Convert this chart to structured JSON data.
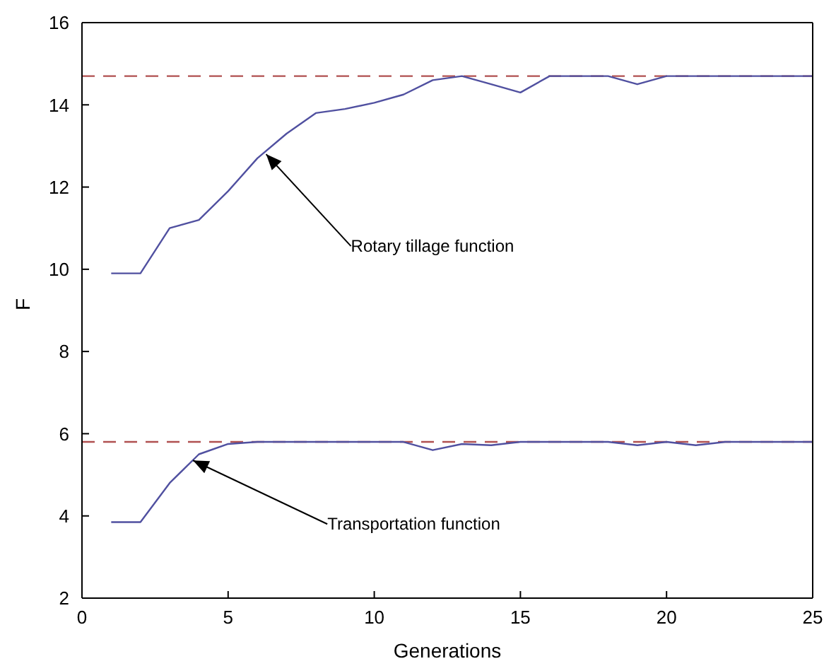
{
  "chart_data": {
    "type": "line",
    "xlabel": "Generations",
    "ylabel": "F",
    "x": [
      1,
      2,
      3,
      4,
      5,
      6,
      7,
      8,
      9,
      10,
      11,
      12,
      13,
      14,
      15,
      16,
      17,
      18,
      19,
      20,
      21,
      22,
      23,
      24,
      25
    ],
    "series": [
      {
        "color": "#5050a0",
        "values": [
          9.9,
          9.9,
          11.0,
          11.2,
          11.9,
          12.7,
          13.3,
          13.8,
          13.9,
          14.05,
          14.25,
          14.6,
          14.7,
          14.5,
          14.3,
          14.7,
          14.7,
          14.7,
          14.5,
          14.7,
          14.7,
          14.7,
          14.7,
          14.7,
          14.7
        ]
      },
      {
        "color": "#5050a0",
        "values": [
          3.85,
          3.85,
          4.8,
          5.5,
          5.75,
          5.8,
          5.8,
          5.8,
          5.8,
          5.8,
          5.8,
          5.6,
          5.75,
          5.72,
          5.8,
          5.8,
          5.8,
          5.8,
          5.72,
          5.8,
          5.72,
          5.8,
          5.8,
          5.8,
          5.8
        ]
      }
    ],
    "ref_lines": [
      {
        "axis": "y",
        "value": 14.7,
        "color": "#b05050",
        "line_style": "dashed"
      },
      {
        "axis": "y",
        "value": 5.8,
        "color": "#b05050",
        "line_style": "dashed"
      }
    ],
    "annotations": [
      {
        "text": "Rotary tillage function",
        "x": 6.3,
        "y": 12.8
      },
      {
        "text": "Transportation function",
        "x": 3.8,
        "y": 5.35
      }
    ],
    "xlim": [
      0,
      25
    ],
    "xticks": [
      0,
      5,
      10,
      15,
      20,
      25
    ],
    "ylim": [
      2,
      16
    ],
    "yticks": [
      2,
      4,
      6,
      8,
      10,
      12,
      14,
      16
    ],
    "grid": false,
    "marker": "none",
    "line_style": "solid"
  }
}
